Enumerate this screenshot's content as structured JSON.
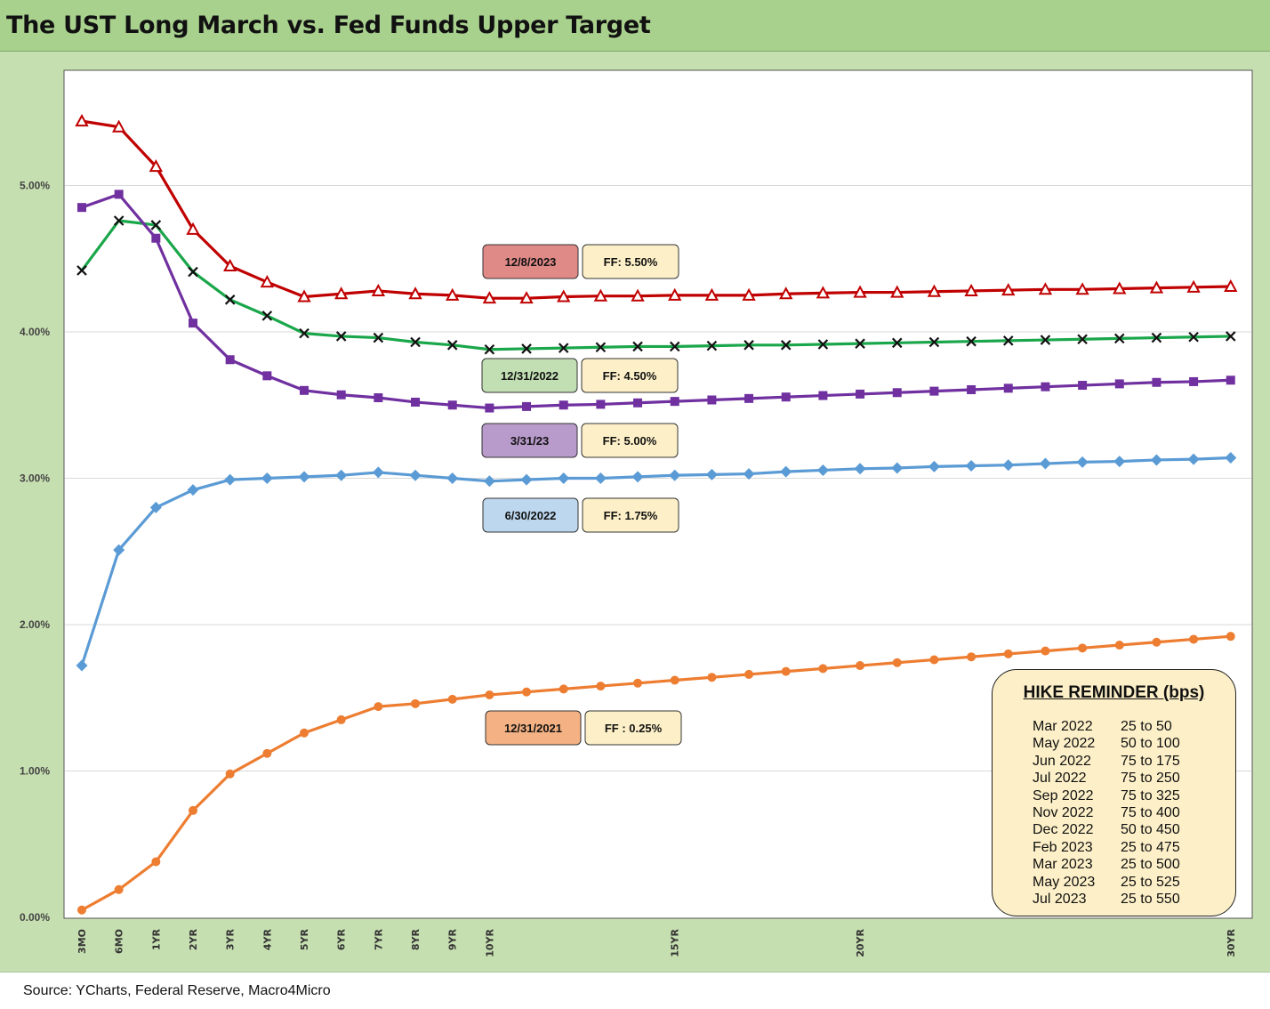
{
  "title": "The UST Long March vs. Fed Funds Upper Target",
  "source": "Source: YCharts, Federal Reserve, Macro4Micro",
  "colors": {
    "page_bg": "#c6dfb0",
    "title_bg": "#a9d18e",
    "series_12_8_2023": "#c00000",
    "series_12_31_2022": "#1aa64a",
    "series_3_31_23": "#7030a0",
    "series_6_30_2022": "#5b9bd5",
    "series_12_31_2021": "#ed7d31"
  },
  "chart_data": {
    "type": "line",
    "x": [
      "3MO",
      "6MO",
      "1YR",
      "2YR",
      "3YR",
      "4YR",
      "5YR",
      "6YR",
      "7YR",
      "8YR",
      "9YR",
      "10YR",
      "11YR",
      "12YR",
      "13YR",
      "14YR",
      "15YR",
      "16YR",
      "17YR",
      "18YR",
      "19YR",
      "20YR",
      "21YR",
      "22YR",
      "23YR",
      "24YR",
      "25YR",
      "26YR",
      "27YR",
      "28YR",
      "29YR",
      "30YR"
    ],
    "x_tick_labels_shown": [
      "3MO",
      "6MO",
      "1YR",
      "2YR",
      "3YR",
      "4YR",
      "5YR",
      "6YR",
      "7YR",
      "8YR",
      "9YR",
      "10YR",
      "15YR",
      "20YR",
      "30YR"
    ],
    "ylim": [
      0,
      5.8
    ],
    "y_ticks": [
      "0.00%",
      "1.00%",
      "2.00%",
      "3.00%",
      "4.00%",
      "5.00%"
    ],
    "grid": "horizontal",
    "series": [
      {
        "label": "12/8/2023",
        "fed_funds": "FF: 5.50%",
        "marker": "triangle-open",
        "color": "#c00000",
        "values": [
          5.44,
          5.4,
          5.13,
          4.7,
          4.45,
          4.34,
          4.24,
          4.26,
          4.28,
          4.26,
          4.25,
          4.23,
          4.23,
          4.24,
          4.245,
          4.245,
          4.25,
          4.25,
          4.25,
          4.26,
          4.265,
          4.27,
          4.27,
          4.275,
          4.28,
          4.285,
          4.29,
          4.29,
          4.295,
          4.3,
          4.305,
          4.31
        ]
      },
      {
        "label": "12/31/2022",
        "fed_funds": "FF: 4.50%",
        "marker": "x",
        "color": "#1aa64a",
        "values": [
          4.42,
          4.76,
          4.73,
          4.41,
          4.22,
          4.11,
          3.99,
          3.97,
          3.96,
          3.93,
          3.91,
          3.88,
          3.885,
          3.89,
          3.895,
          3.9,
          3.9,
          3.905,
          3.91,
          3.91,
          3.915,
          3.92,
          3.925,
          3.93,
          3.935,
          3.94,
          3.945,
          3.95,
          3.955,
          3.96,
          3.965,
          3.97
        ]
      },
      {
        "label": "3/31/23",
        "fed_funds": "FF: 5.00%",
        "marker": "square",
        "color": "#7030a0",
        "values": [
          4.85,
          4.94,
          4.64,
          4.06,
          3.81,
          3.7,
          3.6,
          3.57,
          3.55,
          3.52,
          3.5,
          3.48,
          3.49,
          3.5,
          3.505,
          3.515,
          3.525,
          3.535,
          3.545,
          3.555,
          3.565,
          3.575,
          3.585,
          3.595,
          3.605,
          3.615,
          3.625,
          3.635,
          3.645,
          3.655,
          3.66,
          3.67
        ]
      },
      {
        "label": "6/30/2022",
        "fed_funds": "FF: 1.75%",
        "marker": "diamond",
        "color": "#5b9bd5",
        "values": [
          1.72,
          2.51,
          2.8,
          2.92,
          2.99,
          3.0,
          3.01,
          3.02,
          3.04,
          3.02,
          3.0,
          2.98,
          2.99,
          3.0,
          3.0,
          3.01,
          3.02,
          3.025,
          3.03,
          3.045,
          3.055,
          3.065,
          3.07,
          3.08,
          3.085,
          3.09,
          3.1,
          3.11,
          3.115,
          3.125,
          3.13,
          3.14
        ]
      },
      {
        "label": "12/31/2021",
        "fed_funds": "FF : 0.25%",
        "marker": "circle",
        "color": "#ed7d31",
        "values": [
          0.05,
          0.19,
          0.38,
          0.73,
          0.98,
          1.12,
          1.26,
          1.35,
          1.44,
          1.46,
          1.49,
          1.52,
          1.54,
          1.56,
          1.58,
          1.6,
          1.62,
          1.64,
          1.66,
          1.68,
          1.7,
          1.72,
          1.74,
          1.76,
          1.78,
          1.8,
          1.82,
          1.84,
          1.86,
          1.88,
          1.9,
          1.92
        ]
      }
    ]
  },
  "hike_reminder": {
    "title": "HIKE REMINDER (bps)",
    "rows": [
      {
        "month": "Mar 2022",
        "change": "25 to 50"
      },
      {
        "month": "May 2022",
        "change": "50 to 100"
      },
      {
        "month": "Jun 2022",
        "change": "75 to 175"
      },
      {
        "month": "Jul 2022",
        "change": "75 to 250"
      },
      {
        "month": "Sep 2022",
        "change": "75 to 325"
      },
      {
        "month": "Nov 2022",
        "change": "75 to 400"
      },
      {
        "month": "Dec 2022",
        "change": "50 to 450"
      },
      {
        "month": "Feb 2023",
        "change": "25 to 475"
      },
      {
        "month": "Mar 2023",
        "change": "25 to 500"
      },
      {
        "month": "May 2023",
        "change": "25 to 525"
      },
      {
        "month": "Jul 2023",
        "change": "25 to 550"
      }
    ]
  }
}
